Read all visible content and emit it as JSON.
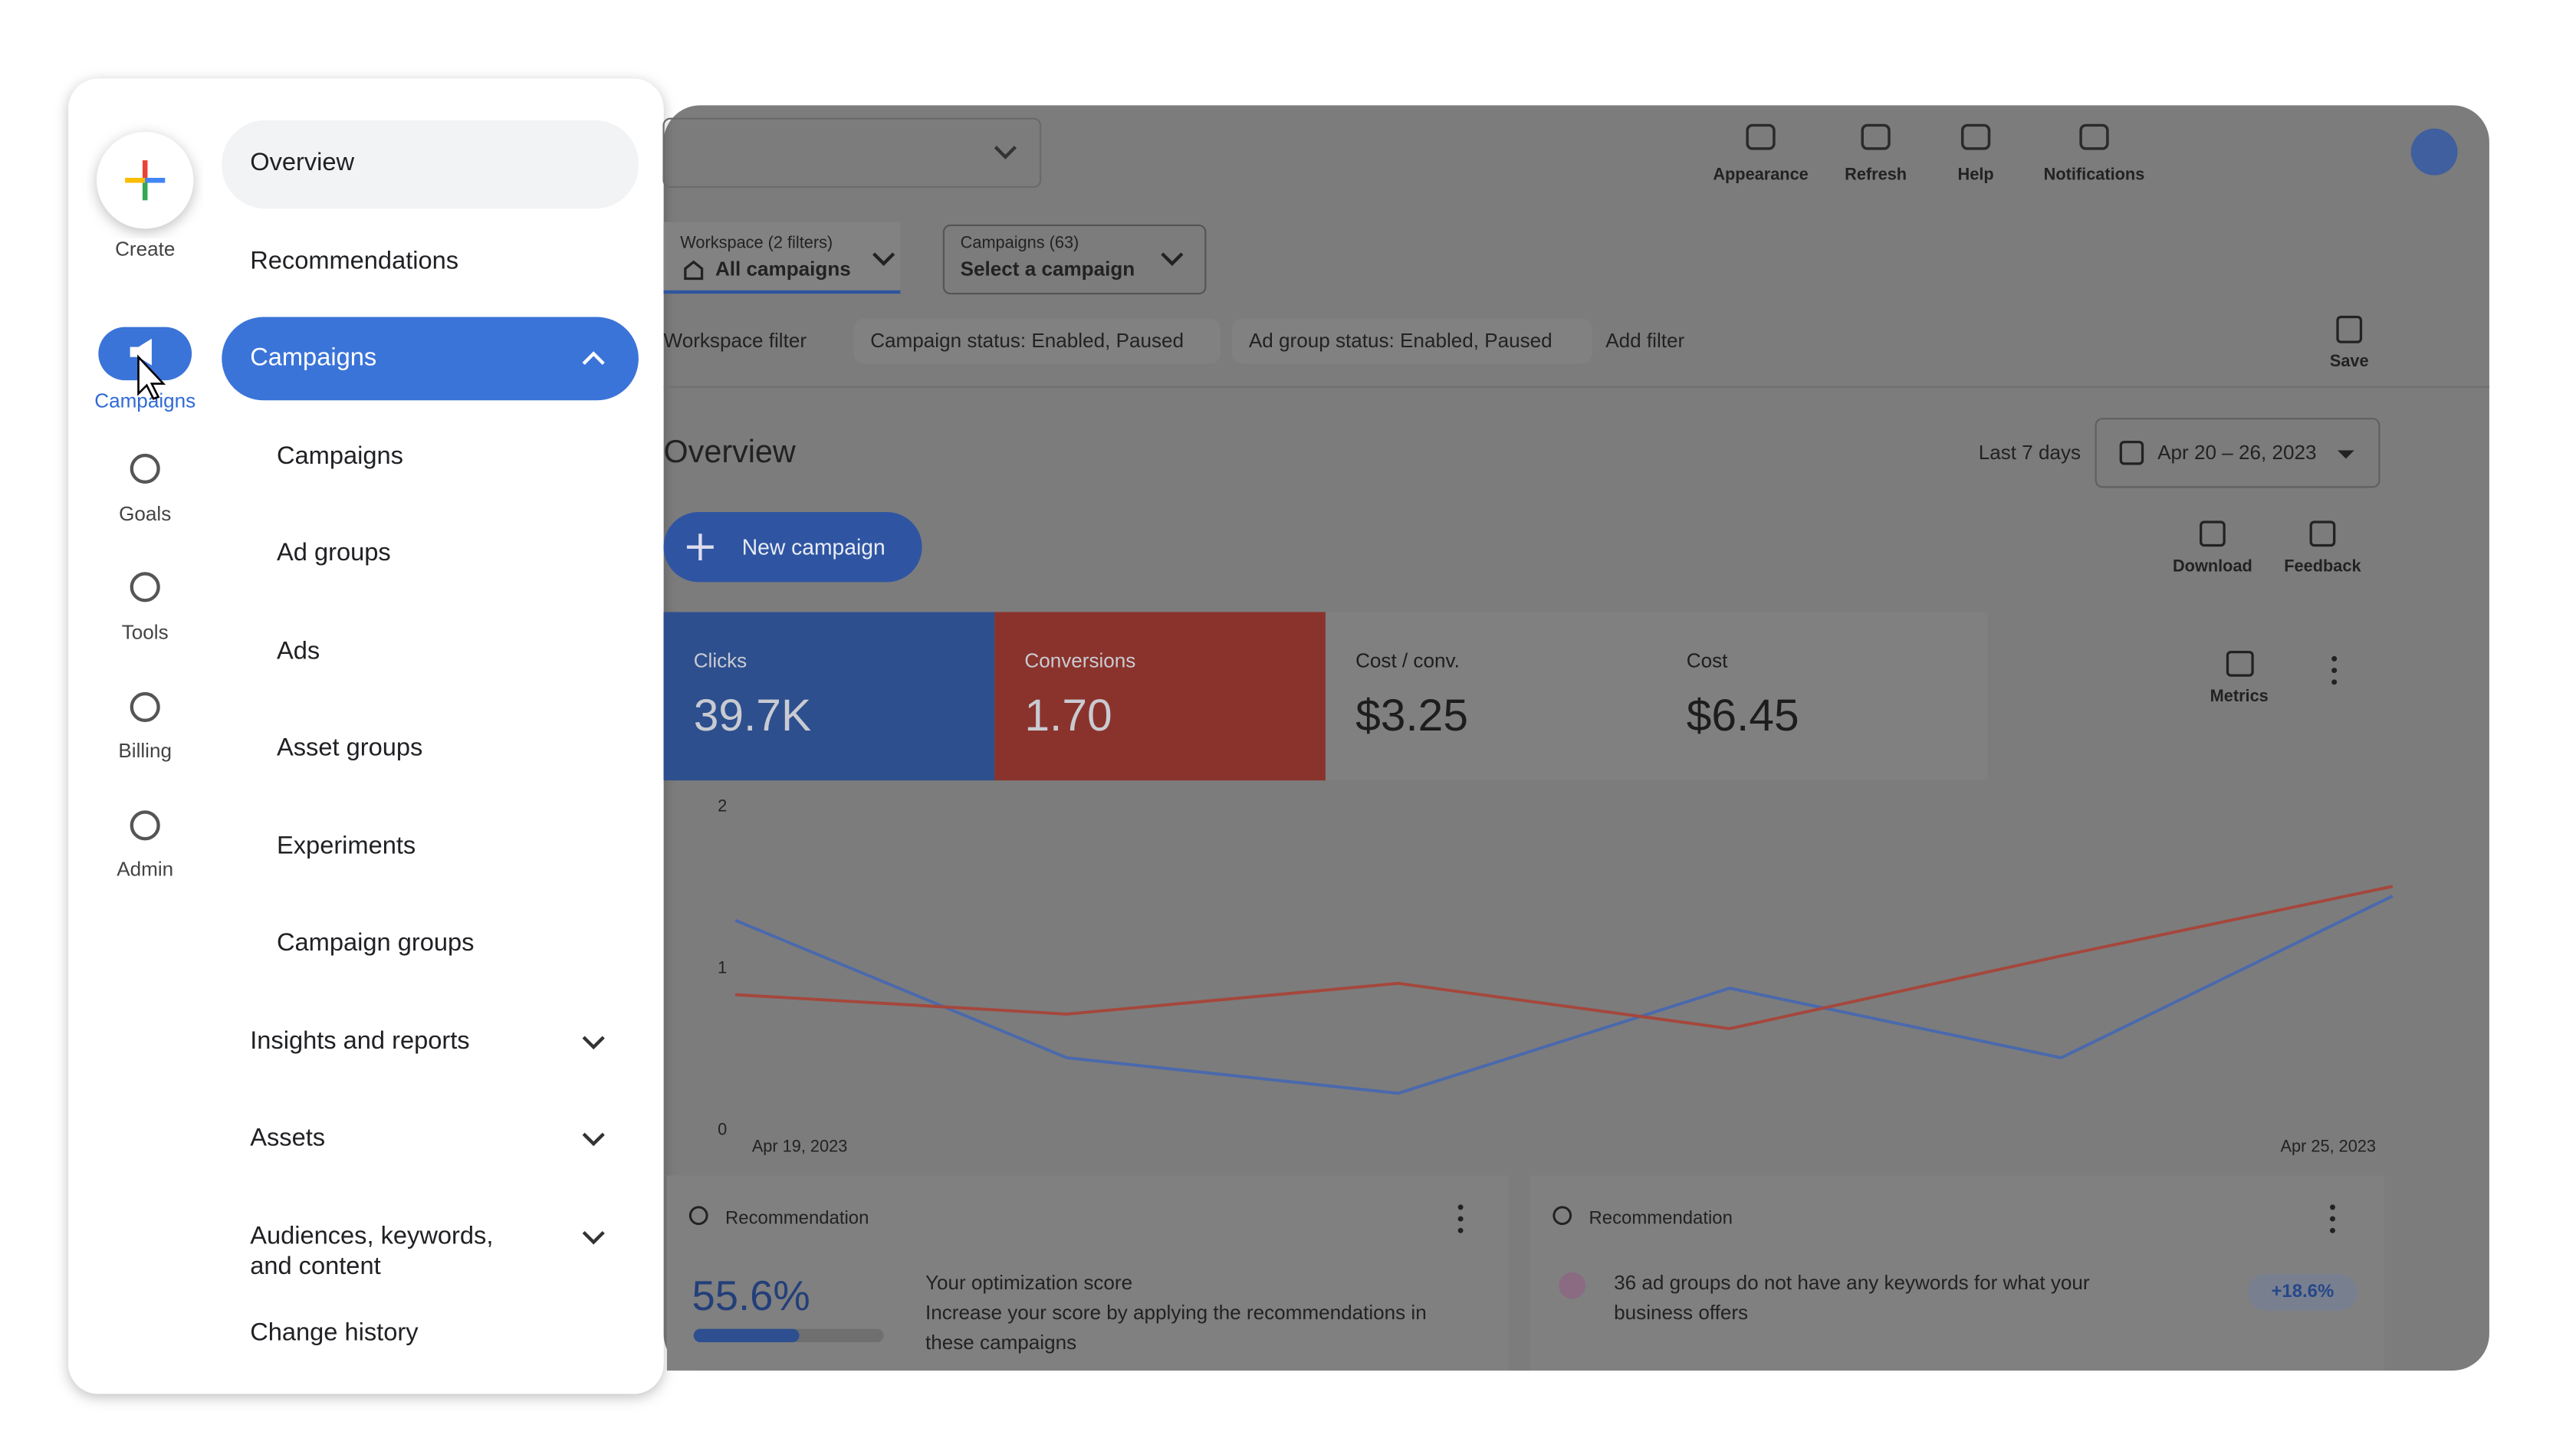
{
  "rail": [
    "Create",
    "Campaigns",
    "Goals",
    "Tools",
    "Billing",
    "Admin"
  ],
  "menu": [
    {
      "label": "Overview"
    },
    {
      "label": "Recommendations"
    },
    {
      "label": "Campaigns"
    },
    {
      "label": "Campaigns"
    },
    {
      "label": "Ad groups"
    },
    {
      "label": "Ads"
    },
    {
      "label": "Asset groups"
    },
    {
      "label": "Experiments"
    },
    {
      "label": "Campaign groups"
    },
    {
      "label": "Insights and reports"
    },
    {
      "label": "Assets"
    },
    {
      "lines": [
        "Audiences, keywords,",
        "and content"
      ]
    },
    {
      "label": "Change history"
    }
  ],
  "toolbar": [
    "Appearance",
    "Refresh",
    "Help",
    "Notifications"
  ],
  "filters": [
    {
      "label": "Workspace (2 filters)",
      "value": "All campaigns"
    },
    {
      "label": "Campaigns (63)",
      "value": "Select a campaign"
    }
  ],
  "filter_chips": [
    "Workspace filter",
    "Campaign status: Enabled, Paused",
    "Ad group status: Enabled, Paused",
    "Add filter"
  ],
  "save": "Save",
  "overview": {
    "title": "Overview",
    "range_label": "Last 7 days",
    "date_range": "Apr 20 – 26, 2023",
    "new_campaign": "New campaign",
    "actions": [
      "Download",
      "Feedback"
    ],
    "metrics_button": "Metrics"
  },
  "metrics": [
    {
      "name": "Clicks",
      "value": "39.7K"
    },
    {
      "name": "Conversions",
      "value": "1.70"
    },
    {
      "name": "Cost / conv.",
      "value": "$3.25"
    },
    {
      "name": "Cost",
      "value": "$6.45"
    }
  ],
  "chart": {
    "type": "line",
    "categories": [
      "Apr 19, 2023",
      null,
      null,
      null,
      null,
      "Apr 25, 2023"
    ],
    "series": [
      {
        "color": "#4a69ad",
        "values": [
          1.3,
          0.45,
          0.23,
          0.88,
          0.45,
          1.45
        ]
      },
      {
        "color": "#a5473c",
        "values": [
          0.84,
          0.72,
          0.91,
          0.63,
          1.08,
          1.51
        ]
      }
    ],
    "ylim": [
      0,
      2
    ],
    "yticks": [
      0,
      1,
      2
    ]
  },
  "recommendations": [
    {
      "label": "Recommendation",
      "score": 55.6,
      "score_label": "55.6%",
      "title": "Your optimization score",
      "lines": [
        "Increase your score by applying the recommendations in",
        "these campaigns"
      ]
    },
    {
      "label": "Recommendation",
      "lines": [
        "36 ad groups do not have any keywords for what your",
        "business offers"
      ],
      "badge": "+18.6%"
    }
  ]
}
